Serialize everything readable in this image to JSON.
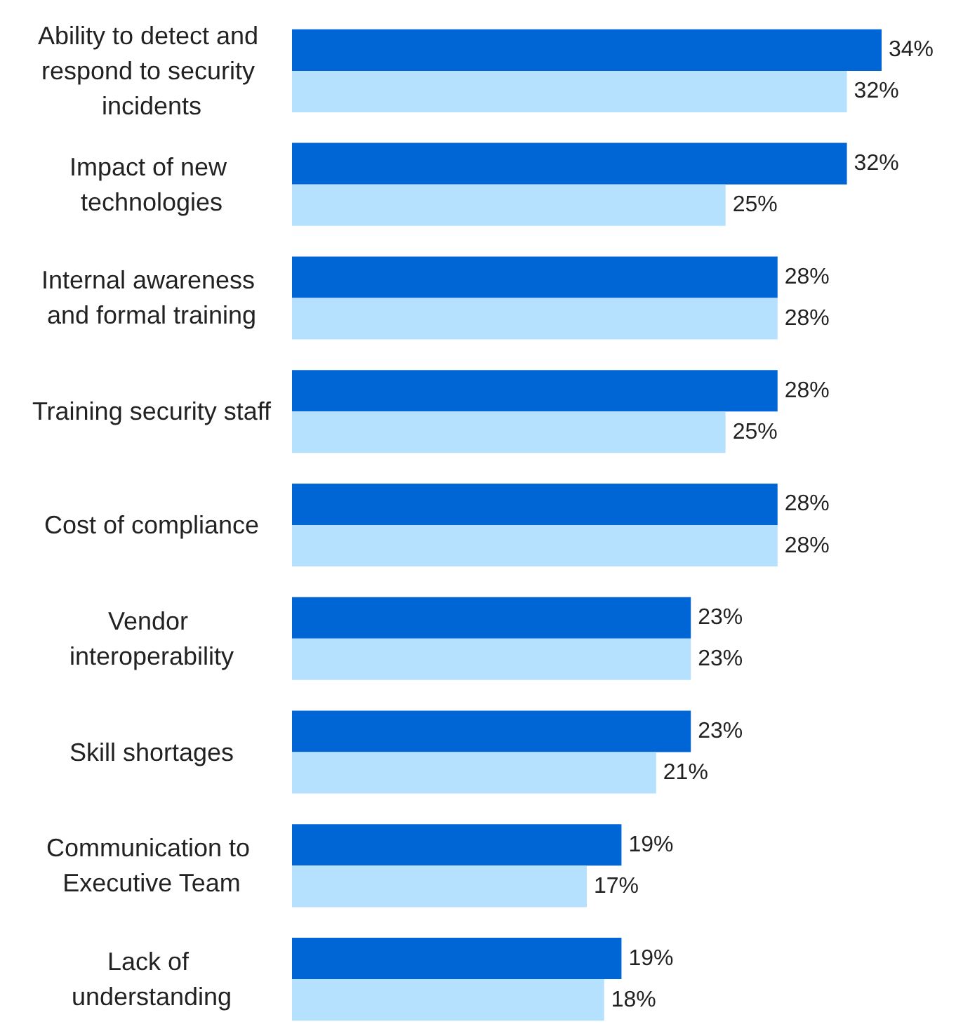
{
  "chart_data": {
    "type": "bar",
    "orientation": "horizontal",
    "categories": [
      "Ability to detect and respond to security incidents",
      "Impact of new technologies",
      "Internal awareness and formal training",
      "Training security staff",
      "Cost of compliance",
      "Vendor interoperability",
      "Skill shortages",
      "Communication to Executive Team",
      "Lack of understanding"
    ],
    "series": [
      {
        "color": "#0066d5",
        "values": [
          34,
          32,
          28,
          28,
          28,
          23,
          23,
          19,
          19
        ],
        "value_labels": [
          "34%",
          "32%",
          "28%",
          "28%",
          "28%",
          "23%",
          "23%",
          "19%",
          "19%"
        ]
      },
      {
        "color": "#b5e1ff",
        "values": [
          32,
          25,
          28,
          25,
          28,
          23,
          21,
          17,
          18
        ],
        "value_labels": [
          "32%",
          "25%",
          "28%",
          "25%",
          "28%",
          "23%",
          "21%",
          "17%",
          "18%"
        ]
      }
    ]
  }
}
